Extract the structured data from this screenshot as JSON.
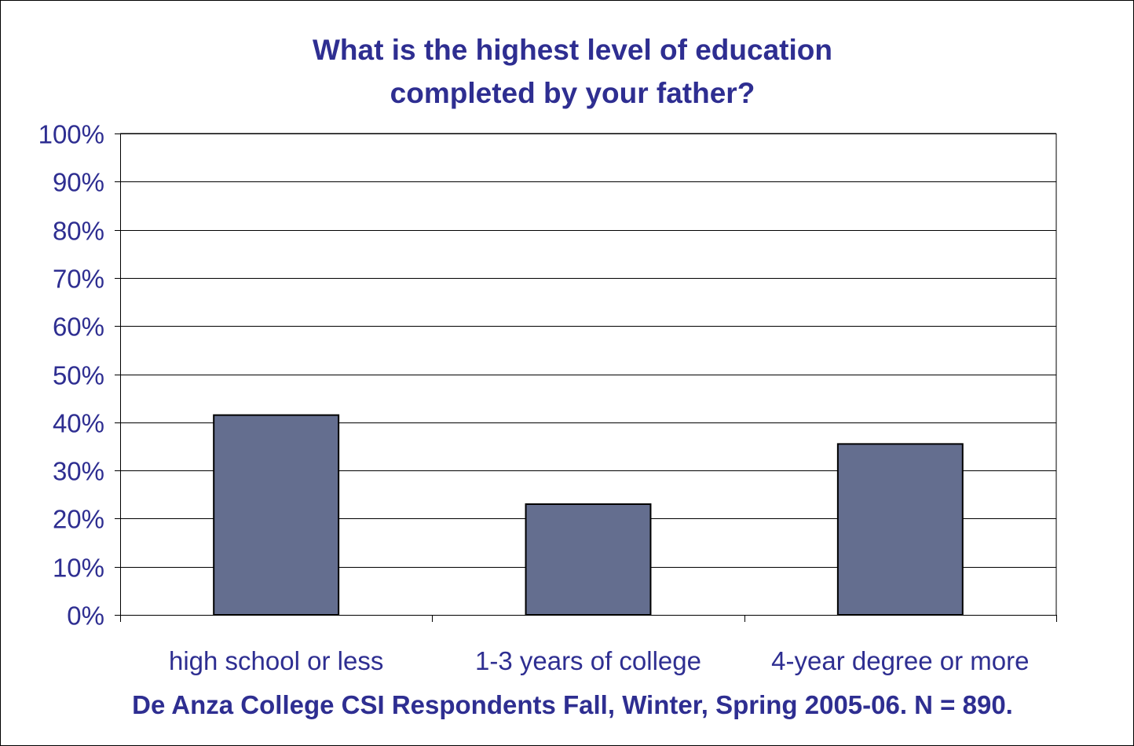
{
  "chart_data": {
    "type": "bar",
    "title": [
      "What is the highest level of education",
      "completed by your father?"
    ],
    "categories": [
      "high school or less",
      "1-3 years of college",
      "4-year degree or more"
    ],
    "values": [
      41.5,
      23,
      35.5
    ],
    "ylim": [
      0,
      100
    ],
    "yticks": [
      "0%",
      "10%",
      "20%",
      "30%",
      "40%",
      "50%",
      "60%",
      "70%",
      "80%",
      "90%",
      "100%"
    ],
    "footnote": "De Anza College CSI Respondents Fall, Winter, Spring 2005-06.  N = 890.",
    "grid": true,
    "legend": "none"
  },
  "colors": {
    "bar_fill": "#646e8f",
    "bar_stroke": "#000000",
    "text": "#2e2e91",
    "grid": "#000000"
  }
}
